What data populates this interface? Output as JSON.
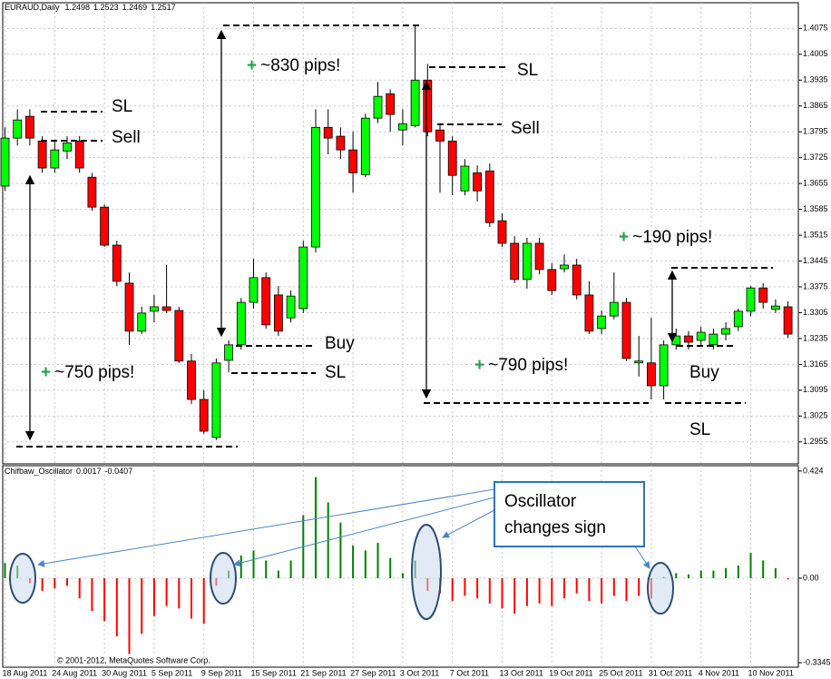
{
  "chart_data": [
    {
      "type": "candlestick",
      "title": "EURAUD,Daily",
      "ohlc_readout": [
        1.2498,
        1.2523,
        1.2469,
        1.2517
      ],
      "categories": [
        "18 Aug 2011",
        null,
        null,
        null,
        "24 Aug 2011",
        null,
        null,
        null,
        "30 Aug 2011",
        null,
        null,
        null,
        "5 Sep 2011",
        null,
        null,
        null,
        "9 Sep 2011",
        null,
        null,
        null,
        "15 Sep 2011",
        null,
        null,
        null,
        "21 Sep 2011",
        null,
        null,
        null,
        "27 Sep 2011",
        null,
        null,
        null,
        "3 Oct 2011",
        null,
        null,
        null,
        "7 Oct 2011",
        null,
        null,
        null,
        "13 Oct 2011",
        null,
        null,
        null,
        "19 Oct 2011",
        null,
        null,
        null,
        "25 Oct 2011",
        null,
        null,
        null,
        "31 Oct 2011",
        null,
        null,
        null,
        "4 Nov 2011",
        null,
        null,
        null,
        "10 Nov 2011",
        null,
        null,
        null
      ],
      "open": [
        1.3648,
        1.3778,
        1.3837,
        1.377,
        1.3697,
        1.3743,
        1.377,
        1.3672,
        1.3591,
        1.3488,
        1.3385,
        1.3255,
        1.3309,
        1.3321,
        1.3311,
        1.3174,
        1.307,
        1.2967,
        1.3176,
        1.3218,
        1.3333,
        1.34,
        1.3353,
        1.3291,
        1.3316,
        1.3483,
        1.3807,
        1.3783,
        1.3746,
        1.3679,
        1.3832,
        1.3898,
        1.38,
        1.3812,
        1.3935,
        1.38,
        1.377,
        1.3635,
        1.3684,
        1.3689,
        1.3554,
        1.3493,
        1.3395,
        1.3493,
        1.3422,
        1.3424,
        1.3434,
        1.3353,
        1.3262,
        1.3296,
        1.3333,
        1.3169,
        1.3169,
        1.3107,
        1.3218,
        1.3242,
        1.323,
        1.3218,
        1.3247,
        1.3267,
        1.3309,
        1.3372,
        1.3314,
        1.3321
      ],
      "high": [
        1.3807,
        1.3856,
        1.3856,
        1.3783,
        1.377,
        1.3783,
        1.3783,
        1.3684,
        1.3598,
        1.35,
        1.3414,
        1.3321,
        1.3353,
        1.3434,
        1.3321,
        1.3193,
        1.3095,
        1.3181,
        1.323,
        1.3345,
        1.3451,
        1.3414,
        1.3377,
        1.3365,
        1.35,
        1.3856,
        1.3856,
        1.3807,
        1.3795,
        1.3844,
        1.393,
        1.391,
        1.3856,
        1.4082,
        1.3979,
        1.3819,
        1.3783,
        1.3721,
        1.3704,
        1.3709,
        1.3574,
        1.3512,
        1.3508,
        1.3508,
        1.3439,
        1.3463,
        1.3451,
        1.339,
        1.3311,
        1.3414,
        1.3345,
        1.3242,
        1.3291,
        1.323,
        1.3262,
        1.3255,
        1.3267,
        1.3262,
        1.3279,
        1.3316,
        1.3377,
        1.3385,
        1.3341,
        1.3336
      ],
      "low": [
        1.3635,
        1.3758,
        1.3758,
        1.3684,
        1.3684,
        1.3721,
        1.3684,
        1.3581,
        1.3483,
        1.3377,
        1.3218,
        1.3247,
        1.3279,
        1.3304,
        1.3169,
        1.3058,
        1.2977,
        1.296,
        1.3144,
        1.3205,
        1.3316,
        1.3262,
        1.3242,
        1.3279,
        1.3304,
        1.3468,
        1.3734,
        1.3721,
        1.363,
        1.3672,
        1.3819,
        1.3795,
        1.3758,
        1.3807,
        1.3783,
        1.363,
        1.3623,
        1.3623,
        1.3606,
        1.3537,
        1.3483,
        1.3385,
        1.337,
        1.3409,
        1.3353,
        1.3414,
        1.3341,
        1.3247,
        1.3247,
        1.3287,
        1.3174,
        1.3132,
        1.307,
        1.307,
        1.3205,
        1.3205,
        1.3218,
        1.3205,
        1.323,
        1.3255,
        1.3296,
        1.3316,
        1.3304,
        1.3237
      ],
      "close": [
        1.3778,
        1.3827,
        1.3778,
        1.3697,
        1.3746,
        1.3765,
        1.3697,
        1.3591,
        1.3488,
        1.339,
        1.3255,
        1.3304,
        1.3321,
        1.3311,
        1.3174,
        1.307,
        1.2984,
        1.3169,
        1.3218,
        1.3333,
        1.34,
        1.3272,
        1.3255,
        1.335,
        1.3483,
        1.3807,
        1.3778,
        1.3746,
        1.3684,
        1.3832,
        1.3891,
        1.3842,
        1.3817,
        1.3935,
        1.3795,
        1.377,
        1.3677,
        1.3702,
        1.3635,
        1.3549,
        1.3493,
        1.3395,
        1.3493,
        1.3422,
        1.3365,
        1.3434,
        1.3353,
        1.3255,
        1.3296,
        1.3333,
        1.3181,
        1.3174,
        1.3107,
        1.3218,
        1.3242,
        1.3225,
        1.3252,
        1.3247,
        1.3262,
        1.3309,
        1.3372,
        1.3333,
        1.3323,
        1.3247
      ],
      "up_color": "#00ff00",
      "down_color": "#ff0000",
      "ylim": [
        1.2925,
        1.4125
      ],
      "yticks": [
        1.4075,
        1.4005,
        1.3935,
        1.3865,
        1.3795,
        1.3725,
        1.3655,
        1.3585,
        1.3515,
        1.3445,
        1.3375,
        1.3305,
        1.3235,
        1.3165,
        1.3095,
        1.3025,
        1.2955
      ],
      "grid": true,
      "annotations": [
        {
          "text": "SL"
        },
        {
          "text": "Sell"
        },
        {
          "sign": "+",
          "text": "~830 pips!"
        },
        {
          "text": "SL"
        },
        {
          "text": "Sell"
        },
        {
          "sign": "+",
          "text": "~190 pips!"
        },
        {
          "text": "Buy"
        },
        {
          "text": "SL"
        },
        {
          "sign": "+",
          "text": "~750 pips!"
        },
        {
          "sign": "+",
          "text": "~790 pips!"
        },
        {
          "text": "Buy"
        },
        {
          "text": "SL"
        }
      ]
    },
    {
      "type": "bar",
      "title": "Chifbaw_Oscillator",
      "readout": [
        0.0017,
        -0.0407
      ],
      "values": [
        0.06,
        0.05,
        -0.02,
        -0.05,
        -0.04,
        -0.03,
        -0.08,
        -0.13,
        -0.17,
        -0.23,
        -0.3,
        -0.22,
        -0.15,
        -0.11,
        -0.12,
        -0.16,
        -0.18,
        -0.03,
        0.03,
        0.09,
        0.11,
        0.07,
        0.03,
        0.07,
        0.25,
        0.4,
        0.3,
        0.22,
        0.13,
        0.11,
        0.14,
        0.08,
        0.02,
        0.07,
        -0.05,
        -0.06,
        -0.09,
        -0.07,
        -0.08,
        -0.1,
        -0.12,
        -0.14,
        -0.11,
        -0.1,
        -0.11,
        -0.08,
        -0.06,
        -0.09,
        -0.1,
        -0.07,
        -0.09,
        -0.07,
        -0.08,
        0.005,
        0.02,
        0.015,
        0.03,
        0.03,
        0.04,
        0.05,
        0.1,
        0.07,
        0.04,
        -0.005
      ],
      "pos_color": "#008000",
      "neg_color": "#ff0000",
      "ylim": [
        -0.35,
        0.438
      ],
      "yticks": [
        0.424,
        {
          "value": 0,
          "label": "0.00"
        },
        -0.3345
      ],
      "callout": [
        "Oscillator",
        "changes sign"
      ],
      "copyright": "© 2001-2012, MetaQuotes Software Corp."
    }
  ]
}
